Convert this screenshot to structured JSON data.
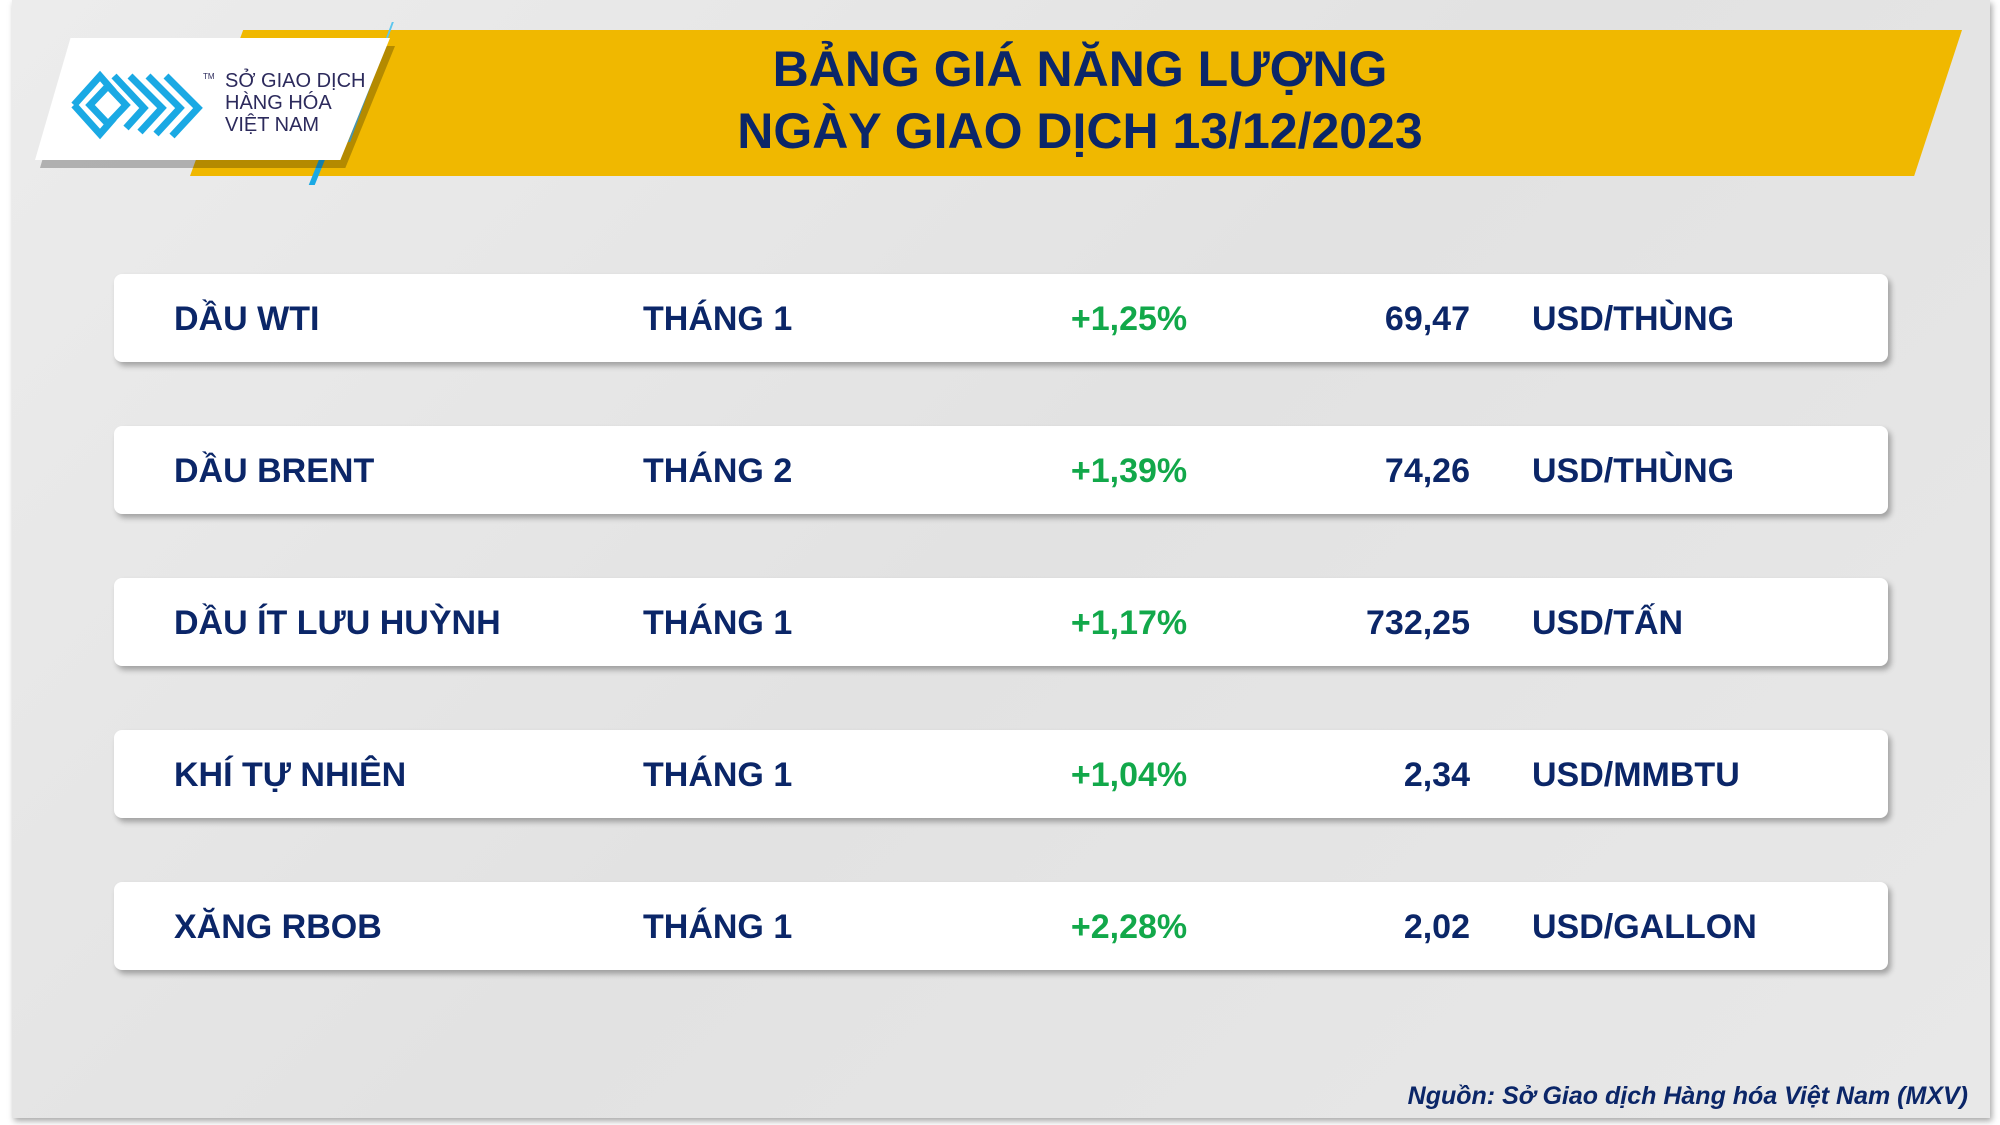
{
  "header": {
    "title_line1": "BẢNG GIÁ NĂNG LƯỢNG",
    "title_line2": "NGÀY GIAO DỊCH 13/12/2023"
  },
  "logo": {
    "line1": "SỞ GIAO DỊCH",
    "line2": "HÀNG HÓA",
    "line3": "VIỆT NAM",
    "tm": "TM"
  },
  "colors": {
    "banner": "#f0b800",
    "text": "#0b2668",
    "positive": "#12a84a",
    "logo_blue": "#1aa9e4"
  },
  "rows": [
    {
      "name": "DẦU WTI",
      "month": "THÁNG 1",
      "change": "+1,25%",
      "price": "69,47",
      "unit": "USD/THÙNG"
    },
    {
      "name": "DẦU BRENT",
      "month": "THÁNG 2",
      "change": "+1,39%",
      "price": "74,26",
      "unit": "USD/THÙNG"
    },
    {
      "name": "DẦU ÍT LƯU HUỲNH",
      "month": "THÁNG 1",
      "change": "+1,17%",
      "price": "732,25",
      "unit": "USD/TẤN"
    },
    {
      "name": "KHÍ TỰ NHIÊN",
      "month": "THÁNG 1",
      "change": "+1,04%",
      "price": "2,34",
      "unit": "USD/MMBTU"
    },
    {
      "name": "XĂNG RBOB",
      "month": "THÁNG 1",
      "change": "+2,28%",
      "price": "2,02",
      "unit": "USD/GALLON"
    }
  ],
  "footer": {
    "source": "Nguồn: Sở Giao dịch Hàng hóa Việt Nam (MXV)"
  }
}
